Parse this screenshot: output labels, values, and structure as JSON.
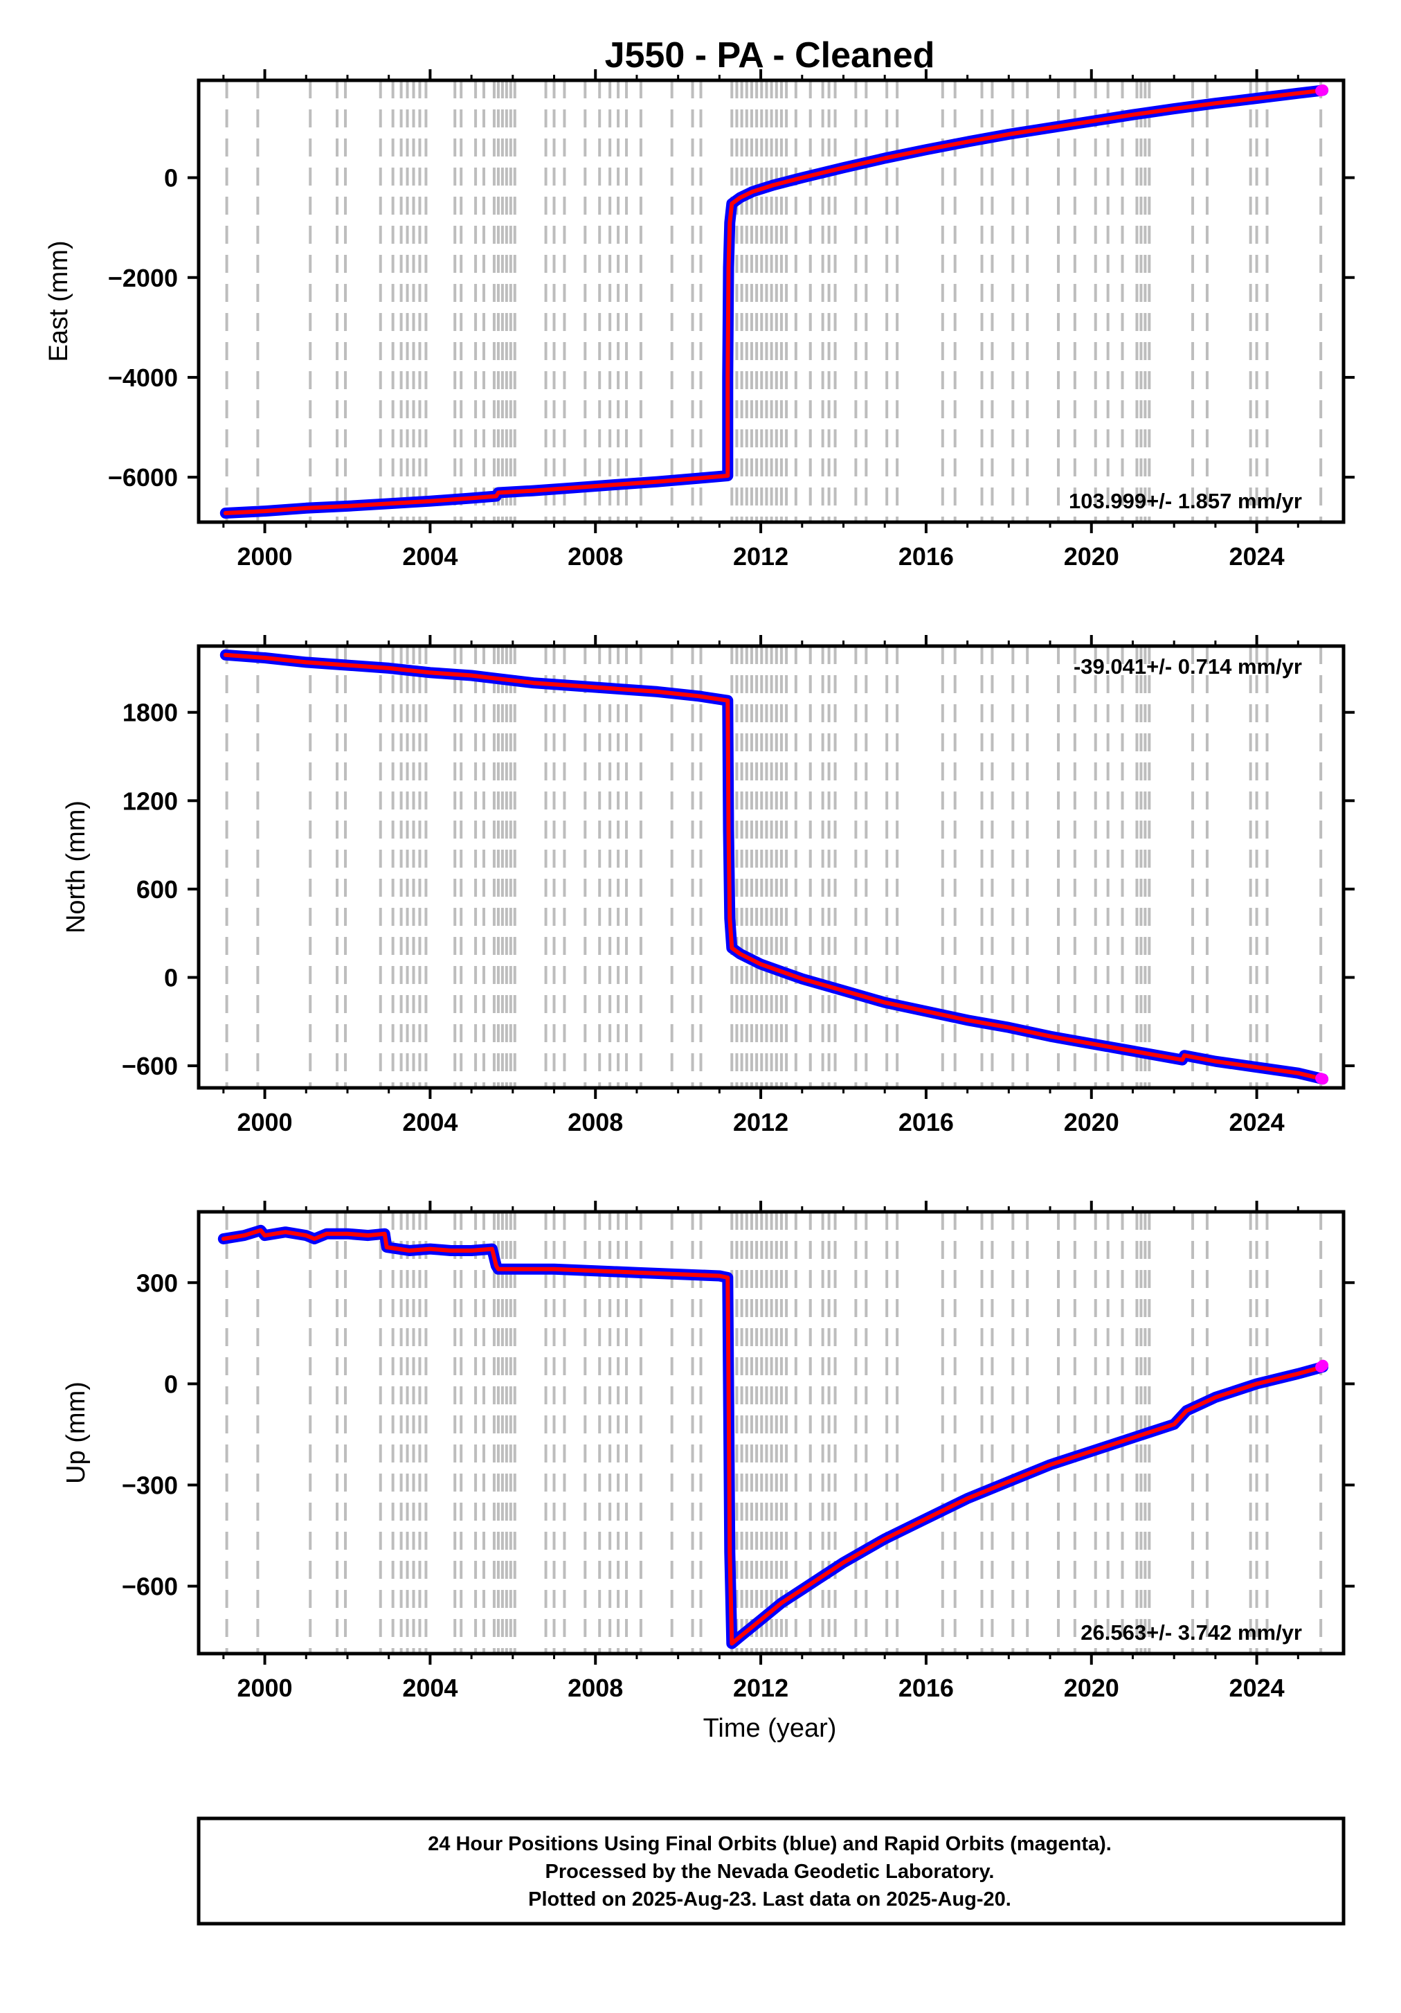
{
  "title": "J550  - PA - Cleaned",
  "xlabel": "Time (year)",
  "footer": {
    "line1": "24 Hour Positions Using Final Orbits (blue) and Rapid Orbits (magenta).",
    "line2": "Processed by the Nevada Geodetic Laboratory.",
    "line3": "Plotted on 2025-Aug-23. Last data on 2025-Aug-20."
  },
  "colors": {
    "final_orbits": "#0000ff",
    "rapid_orbits": "#ff00ff",
    "model": "#ff0000",
    "event_lines": "#bdbdbd",
    "frame": "#000000"
  },
  "event_years": [
    1999.08,
    1999.83,
    2001.1,
    2001.75,
    2001.95,
    2002.8,
    2003.1,
    2003.3,
    2003.45,
    2003.6,
    2003.75,
    2003.9,
    2004.6,
    2004.75,
    2005.1,
    2005.3,
    2005.55,
    2005.65,
    2005.75,
    2005.85,
    2005.95,
    2006.05,
    2006.8,
    2007.0,
    2007.25,
    2007.75,
    2008.1,
    2008.35,
    2008.55,
    2008.75,
    2009.1,
    2009.85,
    2010.35,
    2010.55,
    2011.3,
    2011.42,
    2011.54,
    2011.66,
    2011.78,
    2011.9,
    2012.02,
    2012.14,
    2012.26,
    2012.38,
    2012.5,
    2012.62,
    2012.85,
    2013.2,
    2013.5,
    2013.65,
    2013.8,
    2014.3,
    2014.55,
    2015.05,
    2015.3,
    2016.4,
    2016.7,
    2017.35,
    2017.6,
    2018.1,
    2018.45,
    2019.2,
    2019.6,
    2020.1,
    2020.4,
    2020.75,
    2021.1,
    2021.2,
    2021.3,
    2021.4,
    2022.45,
    2022.8,
    2023.85,
    2024.0,
    2024.25,
    2025.55
  ],
  "chart_data": [
    {
      "type": "scatter",
      "component": "east",
      "ylabel": "East (mm)",
      "rate_label": "103.999+/- 1.857 mm/yr",
      "xlim": [
        1998.4,
        2026.1
      ],
      "ylim": [
        -6900,
        1950
      ],
      "xticks": [
        2000,
        2004,
        2008,
        2012,
        2016,
        2020,
        2024
      ],
      "yticks": [
        0,
        -2000,
        -4000,
        -6000
      ],
      "x": [
        1999.05,
        2000.0,
        2001.0,
        2002.0,
        2003.0,
        2004.0,
        2005.0,
        2005.6,
        2005.65,
        2006.5,
        2007.5,
        2008.5,
        2009.5,
        2010.5,
        2011.2,
        2011.2,
        2011.22,
        2011.25,
        2011.3,
        2011.5,
        2011.8,
        2012.3,
        2013.0,
        2014.0,
        2015.0,
        2016.0,
        2017.0,
        2018.0,
        2019.0,
        2020.0,
        2021.0,
        2022.0,
        2023.0,
        2024.0,
        2025.0,
        2025.6
      ],
      "y": [
        -6720,
        -6680,
        -6620,
        -6580,
        -6530,
        -6480,
        -6420,
        -6380,
        -6310,
        -6270,
        -6210,
        -6150,
        -6090,
        -6020,
        -5970,
        -4000,
        -1800,
        -900,
        -520,
        -400,
        -280,
        -150,
        0,
        200,
        390,
        560,
        720,
        870,
        1000,
        1130,
        1260,
        1380,
        1490,
        1590,
        1690,
        1750
      ],
      "rapid_x": [
        2025.55,
        2025.6
      ],
      "rapid_y": [
        1740,
        1755
      ]
    },
    {
      "type": "scatter",
      "component": "north",
      "ylabel": "North (mm)",
      "rate_label": "-39.041+/- 0.714 mm/yr",
      "xlim": [
        1998.4,
        2026.1
      ],
      "ylim": [
        -750,
        2250
      ],
      "xticks": [
        2000,
        2004,
        2008,
        2012,
        2016,
        2020,
        2024
      ],
      "yticks": [
        1800,
        1200,
        600,
        0,
        -600
      ],
      "x": [
        1999.05,
        2000.0,
        2001.0,
        2002.0,
        2003.0,
        2004.0,
        2005.0,
        2005.6,
        2006.5,
        2007.5,
        2008.5,
        2009.5,
        2010.5,
        2011.2,
        2011.22,
        2011.25,
        2011.3,
        2011.5,
        2012.0,
        2012.5,
        2013.0,
        2014.0,
        2015.0,
        2016.0,
        2017.0,
        2018.0,
        2019.0,
        2020.0,
        2021.0,
        2022.2,
        2022.25,
        2023.0,
        2024.0,
        2025.0,
        2025.6
      ],
      "y": [
        2190,
        2170,
        2140,
        2120,
        2100,
        2070,
        2050,
        2030,
        2000,
        1980,
        1960,
        1940,
        1910,
        1880,
        1000,
        400,
        200,
        160,
        90,
        40,
        -10,
        -90,
        -170,
        -230,
        -290,
        -340,
        -400,
        -450,
        -500,
        -560,
        -530,
        -570,
        -610,
        -650,
        -690
      ],
      "rapid_x": [
        2025.55,
        2025.6
      ],
      "rapid_y": [
        -685,
        -690
      ]
    },
    {
      "type": "scatter",
      "component": "up",
      "ylabel": "Up (mm)",
      "rate_label": "26.563+/- 3.742 mm/yr",
      "xlim": [
        1998.4,
        2026.1
      ],
      "ylim": [
        -800,
        510
      ],
      "xticks": [
        2000,
        2004,
        2008,
        2012,
        2016,
        2020,
        2024
      ],
      "yticks": [
        300,
        0,
        -300,
        -600
      ],
      "x": [
        1999.0,
        1999.5,
        1999.9,
        2000.0,
        2000.5,
        2001.0,
        2001.2,
        2001.5,
        2002.0,
        2002.5,
        2002.9,
        2002.95,
        2003.5,
        2004.0,
        2004.5,
        2005.0,
        2005.5,
        2005.6,
        2005.65,
        2006.0,
        2007.0,
        2008.0,
        2009.0,
        2010.0,
        2011.0,
        2011.2,
        2011.22,
        2011.25,
        2011.3,
        2011.5,
        2012.0,
        2012.5,
        2013.0,
        2013.5,
        2014.0,
        2015.0,
        2016.0,
        2017.0,
        2018.0,
        2019.0,
        2020.0,
        2021.0,
        2022.0,
        2022.3,
        2023.0,
        2024.0,
        2025.0,
        2025.6
      ],
      "y": [
        430,
        440,
        455,
        440,
        450,
        440,
        430,
        445,
        445,
        440,
        445,
        405,
        395,
        400,
        395,
        395,
        400,
        350,
        340,
        340,
        340,
        335,
        330,
        325,
        320,
        315,
        0,
        -500,
        -770,
        -750,
        -700,
        -650,
        -610,
        -570,
        -530,
        -460,
        -400,
        -340,
        -290,
        -240,
        -200,
        -160,
        -120,
        -80,
        -40,
        0,
        30,
        50
      ],
      "rapid_x": [
        2025.55,
        2025.6
      ],
      "rapid_y": [
        50,
        55
      ]
    }
  ]
}
